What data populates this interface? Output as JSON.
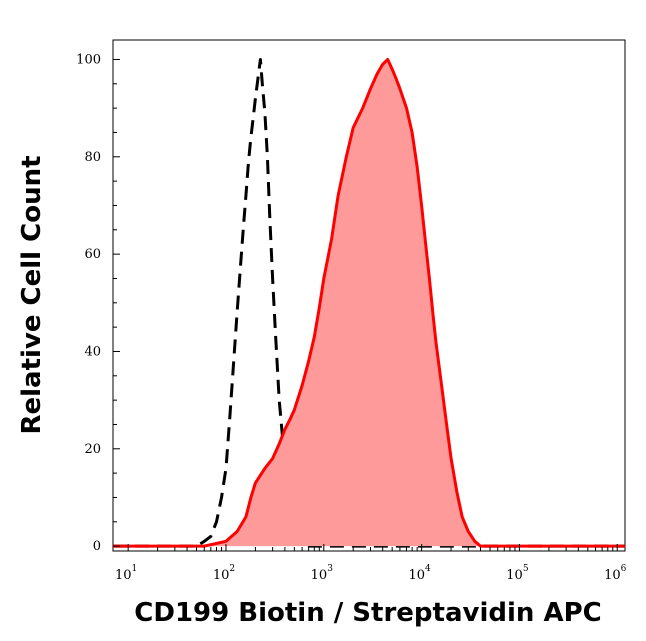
{
  "chart_data": {
    "type": "area",
    "xlabel": "CD199 Biotin / Streptavidin APC",
    "ylabel": "Relative Cell Count",
    "x_scale": "log",
    "xlim": [
      7,
      1200000
    ],
    "ylim": [
      -1,
      104
    ],
    "grid": false,
    "x_ticks": [
      {
        "base": "10",
        "exp": "1",
        "value": 10
      },
      {
        "base": "10",
        "exp": "2",
        "value": 100
      },
      {
        "base": "10",
        "exp": "3",
        "value": 1000
      },
      {
        "base": "10",
        "exp": "4",
        "value": 10000
      },
      {
        "base": "10",
        "exp": "5",
        "value": 100000
      },
      {
        "base": "10",
        "exp": "6",
        "value": 1000000
      }
    ],
    "y_ticks": [
      {
        "label": "0",
        "value": 0
      },
      {
        "label": "20",
        "value": 20
      },
      {
        "label": "40",
        "value": 40
      },
      {
        "label": "60",
        "value": 60
      },
      {
        "label": "80",
        "value": 80
      },
      {
        "label": "100",
        "value": 100
      }
    ],
    "series": [
      {
        "style": "dashed",
        "color": "#000000",
        "fill": "none",
        "points": [
          [
            7,
            0
          ],
          [
            40,
            0
          ],
          [
            50,
            0
          ],
          [
            60,
            1
          ],
          [
            70,
            2
          ],
          [
            80,
            5
          ],
          [
            90,
            10
          ],
          [
            100,
            16
          ],
          [
            110,
            27
          ],
          [
            120,
            38
          ],
          [
            130,
            48
          ],
          [
            140,
            57
          ],
          [
            150,
            65
          ],
          [
            160,
            72
          ],
          [
            170,
            79
          ],
          [
            180,
            84
          ],
          [
            190,
            88
          ],
          [
            200,
            92
          ],
          [
            215,
            97
          ],
          [
            225,
            100
          ],
          [
            235,
            95
          ],
          [
            250,
            89
          ],
          [
            265,
            80
          ],
          [
            280,
            68
          ],
          [
            300,
            55
          ],
          [
            320,
            44
          ],
          [
            350,
            30
          ],
          [
            380,
            22
          ],
          [
            410,
            12
          ],
          [
            450,
            5
          ],
          [
            500,
            2
          ],
          [
            600,
            0
          ],
          [
            700,
            0
          ],
          [
            1000,
            0
          ],
          [
            1200000,
            0
          ]
        ]
      },
      {
        "style": "solid",
        "color": "#ff0000",
        "fill": "#ff9a9a",
        "points": [
          [
            7,
            0
          ],
          [
            60,
            0
          ],
          [
            100,
            1
          ],
          [
            130,
            3
          ],
          [
            160,
            6
          ],
          [
            180,
            10
          ],
          [
            200,
            13
          ],
          [
            250,
            16
          ],
          [
            300,
            18
          ],
          [
            350,
            21
          ],
          [
            400,
            24
          ],
          [
            450,
            26
          ],
          [
            500,
            28
          ],
          [
            600,
            33
          ],
          [
            700,
            38
          ],
          [
            800,
            43
          ],
          [
            900,
            49
          ],
          [
            1000,
            55
          ],
          [
            1200,
            63
          ],
          [
            1400,
            72
          ],
          [
            1700,
            80
          ],
          [
            2000,
            86
          ],
          [
            2500,
            90
          ],
          [
            3000,
            94
          ],
          [
            3500,
            97
          ],
          [
            4000,
            99
          ],
          [
            4500,
            100
          ],
          [
            5000,
            98
          ],
          [
            5500,
            96
          ],
          [
            6000,
            94
          ],
          [
            7000,
            90
          ],
          [
            8000,
            85
          ],
          [
            9000,
            78
          ],
          [
            10000,
            70
          ],
          [
            11000,
            62
          ],
          [
            12000,
            55
          ],
          [
            13000,
            48
          ],
          [
            14000,
            42
          ],
          [
            16000,
            33
          ],
          [
            18000,
            25
          ],
          [
            20000,
            18
          ],
          [
            23000,
            11
          ],
          [
            26000,
            6
          ],
          [
            30000,
            3
          ],
          [
            35000,
            1
          ],
          [
            40000,
            0
          ],
          [
            1200000,
            0
          ]
        ]
      }
    ]
  }
}
